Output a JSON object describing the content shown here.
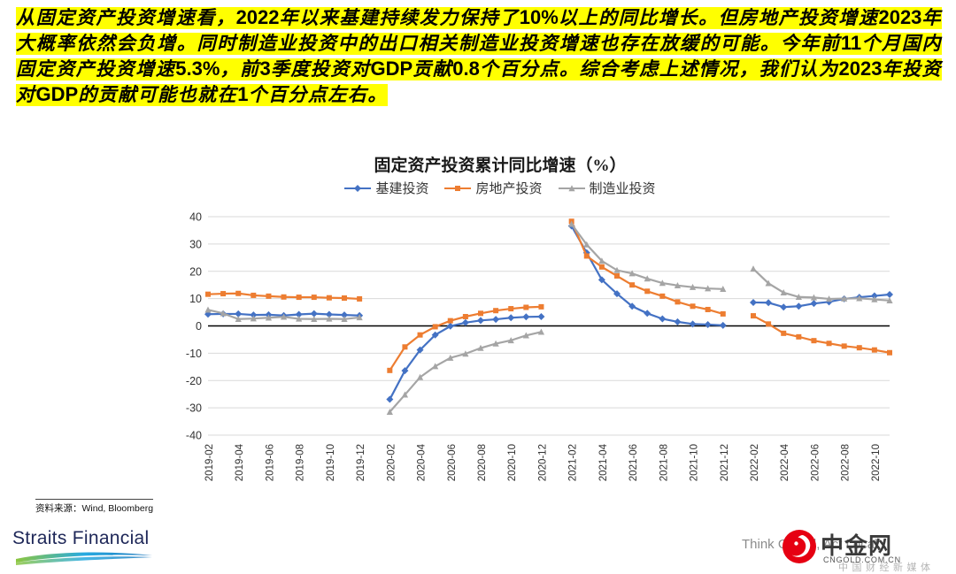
{
  "summary": {
    "highlight_color": "#FFFF00",
    "segments": [
      {
        "k": "cn",
        "t": "从固定资产投资增速看，"
      },
      {
        "k": "num",
        "t": "2022"
      },
      {
        "k": "cn",
        "t": "年以来基建持续发力保持了"
      },
      {
        "k": "num",
        "t": "10%"
      },
      {
        "k": "cn",
        "t": "以上的同比增长。但房地产投资增速"
      },
      {
        "k": "num",
        "t": "2023"
      },
      {
        "k": "cn",
        "t": "年大概率依然会负增。同时制造业投资中的出口相关制造业投资增速也存在放缓的可能。今年前"
      },
      {
        "k": "num",
        "t": "11"
      },
      {
        "k": "cn",
        "t": "个月国内固定资产投资增速"
      },
      {
        "k": "num",
        "t": "5.3%"
      },
      {
        "k": "cn",
        "t": "，前"
      },
      {
        "k": "num",
        "t": "3"
      },
      {
        "k": "cn",
        "t": "季度投资对"
      },
      {
        "k": "num",
        "t": "GDP"
      },
      {
        "k": "cn",
        "t": "贡献"
      },
      {
        "k": "num",
        "t": "0.8"
      },
      {
        "k": "cn",
        "t": "个百分点。综合考虑上述情况，我们认为"
      },
      {
        "k": "num",
        "t": "2023"
      },
      {
        "k": "cn",
        "t": "年投资对"
      },
      {
        "k": "num",
        "t": "GDP"
      },
      {
        "k": "cn",
        "t": "的贡献可能也就在"
      },
      {
        "k": "num",
        "t": "1"
      },
      {
        "k": "cn",
        "t": "个百分点左右。"
      }
    ]
  },
  "chart_data": {
    "type": "line",
    "title": "固定资产投资累计同比增速（%）",
    "ylim": [
      -40,
      40
    ],
    "y_step": 10,
    "grid": true,
    "legend_position": "top",
    "n_slots": 46,
    "tick_slots": [
      0,
      2,
      4,
      6,
      8,
      10,
      12,
      14,
      16,
      18,
      20,
      22,
      24,
      26,
      28,
      30,
      32,
      34,
      36,
      38,
      40,
      42,
      44
    ],
    "x_labels": [
      "2019-02",
      "2019-04",
      "2019-06",
      "2019-08",
      "2019-10",
      "2019-12",
      "2020-02",
      "2020-04",
      "2020-06",
      "2020-08",
      "2020-10",
      "2020-12",
      "2021-02",
      "2021-04",
      "2021-06",
      "2021-08",
      "2021-10",
      "2021-12",
      "2022-02",
      "2022-04",
      "2022-06",
      "2022-08",
      "2022-10"
    ],
    "series": [
      {
        "name": "基建投资",
        "color": "#4472C4",
        "marker": "diamond",
        "values": [
          4.3,
          4.4,
          4.4,
          4.0,
          4.1,
          3.8,
          4.2,
          4.5,
          4.2,
          4.0,
          3.8,
          null,
          -26.9,
          -16.4,
          -8.8,
          -3.3,
          -0.1,
          1.2,
          2.0,
          2.4,
          3.0,
          3.3,
          3.4,
          null,
          36.6,
          26.8,
          16.9,
          11.8,
          7.2,
          4.6,
          2.6,
          1.5,
          0.7,
          0.5,
          0.2,
          null,
          8.6,
          8.5,
          6.9,
          7.2,
          8.2,
          8.8,
          9.9,
          10.5,
          11.0,
          11.5
        ]
      },
      {
        "name": "房地产投资",
        "color": "#ED7D31",
        "marker": "square",
        "values": [
          11.6,
          11.8,
          11.9,
          11.2,
          10.9,
          10.6,
          10.5,
          10.5,
          10.3,
          10.2,
          9.9,
          null,
          -16.3,
          -7.7,
          -3.3,
          -0.3,
          1.9,
          3.4,
          4.6,
          5.6,
          6.3,
          6.8,
          7.0,
          null,
          38.3,
          25.6,
          21.6,
          18.3,
          15.0,
          12.7,
          10.9,
          8.8,
          7.2,
          6.0,
          4.4,
          null,
          3.7,
          0.7,
          -2.7,
          -4.0,
          -5.4,
          -6.4,
          -7.4,
          -8.0,
          -8.8,
          -9.8
        ]
      },
      {
        "name": "制造业投资",
        "color": "#A5A5A5",
        "marker": "triangle",
        "values": [
          5.9,
          4.6,
          2.5,
          2.7,
          3.0,
          3.3,
          2.6,
          2.5,
          2.6,
          2.5,
          3.1,
          null,
          -31.5,
          -25.2,
          -18.8,
          -14.8,
          -11.7,
          -10.2,
          -8.1,
          -6.5,
          -5.3,
          -3.5,
          -2.2,
          null,
          37.3,
          29.8,
          23.8,
          20.4,
          19.2,
          17.3,
          15.7,
          14.8,
          14.2,
          13.7,
          13.5,
          null,
          20.9,
          15.6,
          12.2,
          10.6,
          10.4,
          9.9,
          10.0,
          10.1,
          9.7,
          9.3
        ]
      }
    ]
  },
  "footer": {
    "source": "资料来源：Wind, Bloomberg",
    "straits": "Straits Financial",
    "slogan": "Think Global, Act Local.",
    "cngold": {
      "name": "中金网",
      "domain": "CNGOLD.COM.CN",
      "tagline": "中国财经新媒体",
      "red": "#E60012"
    }
  }
}
